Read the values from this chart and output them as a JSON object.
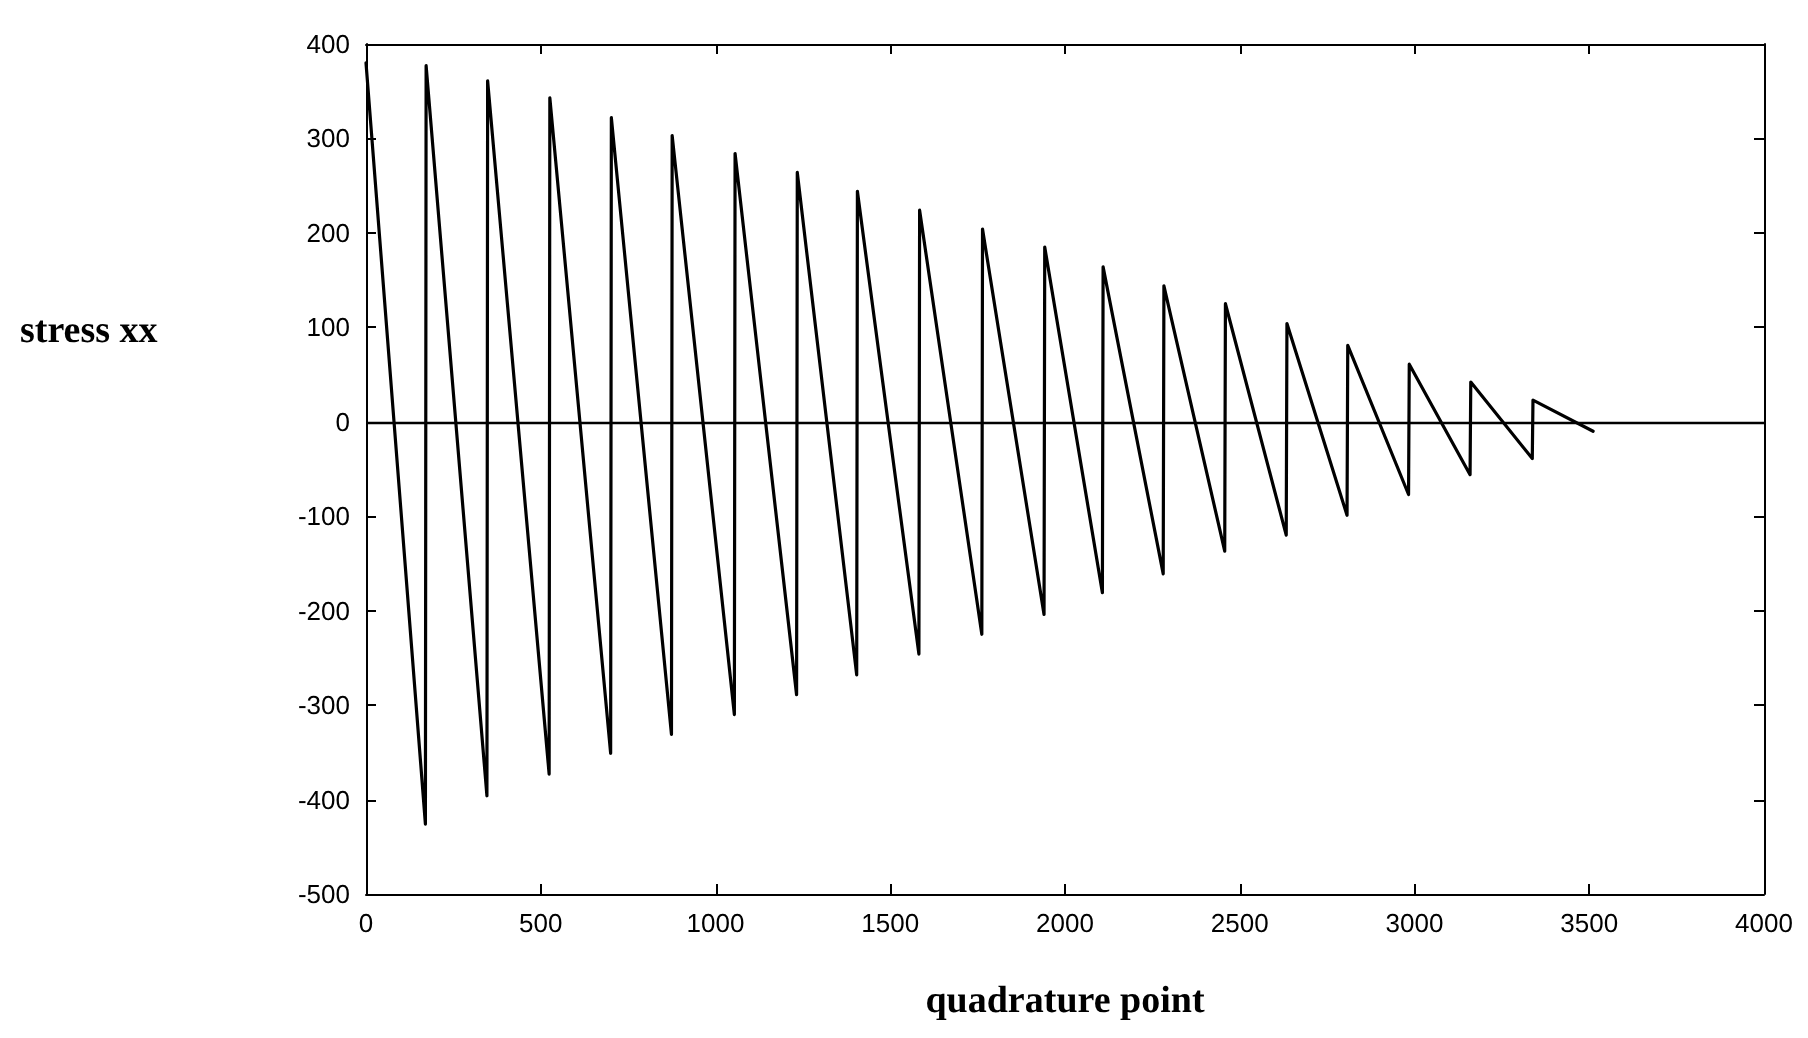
{
  "chart_data": {
    "type": "line",
    "xlabel": "quadrature point",
    "ylabel": "stress xx",
    "series": [
      {
        "color": "#000000",
        "x": [
          0,
          170,
          172,
          346,
          348,
          524,
          526,
          700,
          702,
          874,
          876,
          1054,
          1056,
          1232,
          1234,
          1404,
          1406,
          1582,
          1584,
          1762,
          1764,
          1940,
          1942,
          2107,
          2109,
          2281,
          2283,
          2457,
          2459,
          2633,
          2635,
          2807,
          2809,
          2983,
          2985,
          3159,
          3161,
          3337,
          3339,
          3511
        ],
        "values": [
          380,
          -426,
          377,
          -396,
          361,
          -373,
          343,
          -351,
          322,
          -331,
          303,
          -310,
          284,
          -289,
          264,
          -268,
          244,
          -246,
          224,
          -225,
          204,
          -204,
          185,
          -181,
          164,
          -161,
          144,
          -137,
          125,
          -120,
          104,
          -99,
          81,
          -77,
          61,
          -56,
          42,
          -39,
          23,
          -10
        ]
      }
    ],
    "xlim": [
      0,
      4000
    ],
    "xticks": [
      0,
      500,
      1000,
      1500,
      2000,
      2500,
      3000,
      3500,
      4000
    ],
    "ylim": [
      -500,
      400
    ],
    "yticks": [
      -500,
      -400,
      -300,
      -200,
      -100,
      0,
      100,
      200,
      300,
      400
    ],
    "ref_lines": [
      {
        "axis": "y",
        "value": 0,
        "color": "#000000"
      }
    ],
    "marker": "none",
    "line_style": "solid"
  }
}
